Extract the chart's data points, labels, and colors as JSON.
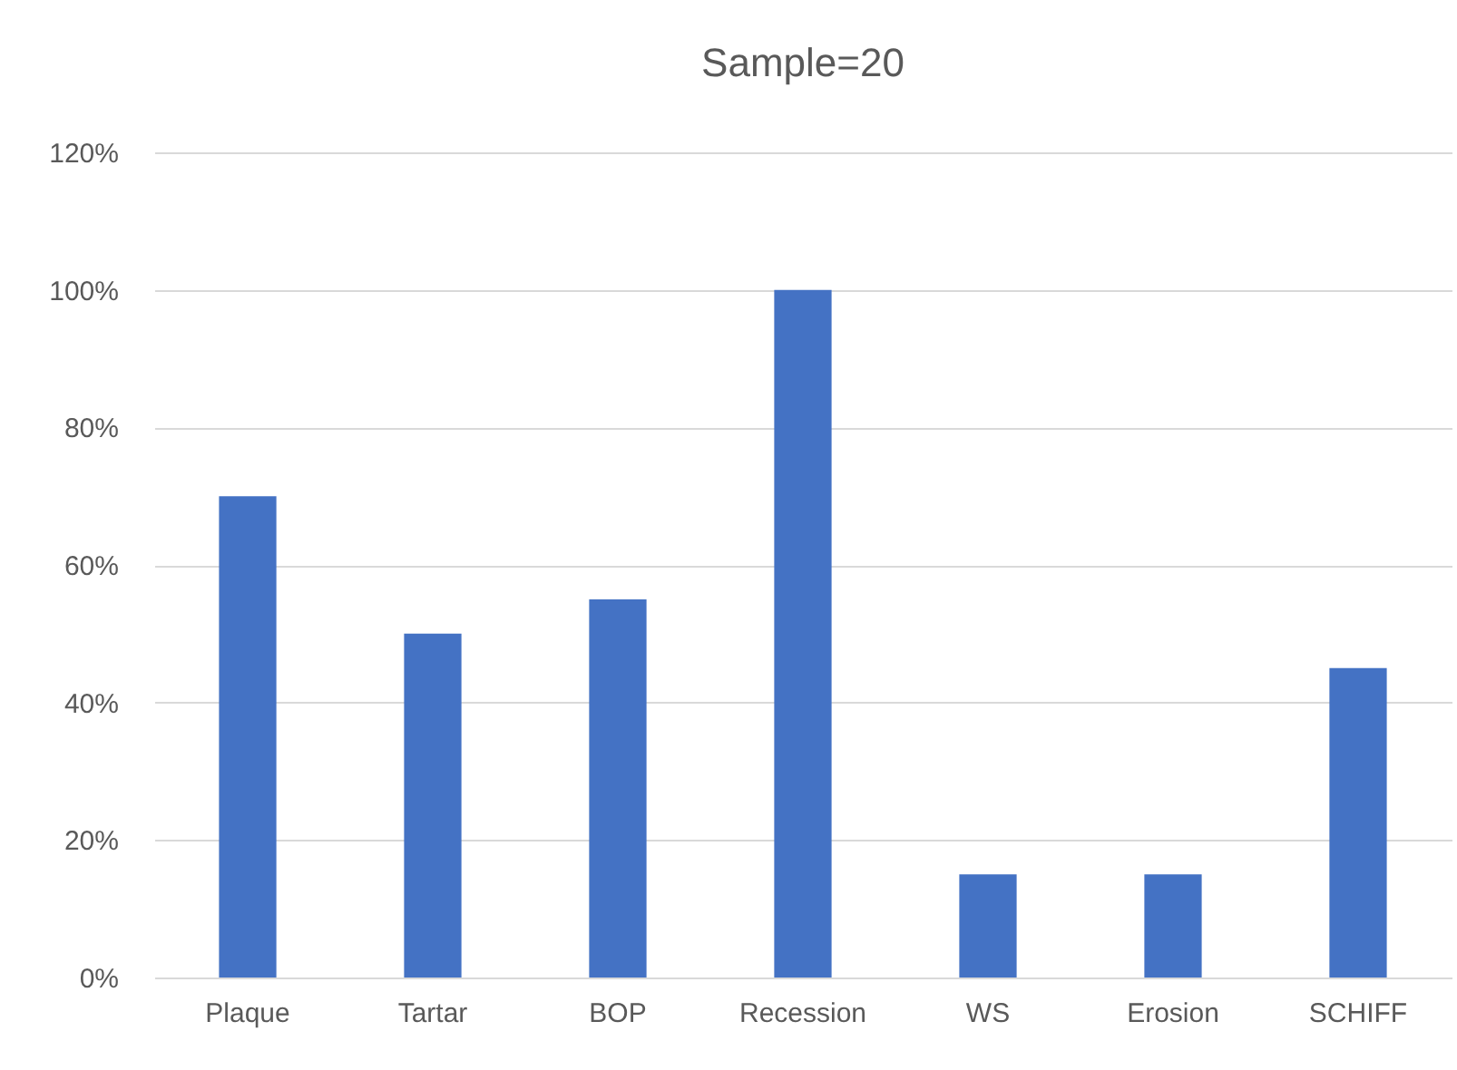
{
  "chart_data": {
    "type": "bar",
    "title": "Sample=20",
    "categories": [
      "Plaque",
      "Tartar",
      "BOP",
      "Recession",
      "WS",
      "Erosion",
      "SCHIFF"
    ],
    "values": [
      70,
      50,
      55,
      100,
      15,
      15,
      45
    ],
    "color": "#4472c4",
    "ylim": [
      0,
      120
    ],
    "yticks": [
      {
        "value": 0,
        "label": "0%"
      },
      {
        "value": 20,
        "label": "20%"
      },
      {
        "value": 40,
        "label": "40%"
      },
      {
        "value": 60,
        "label": "60%"
      },
      {
        "value": 80,
        "label": "80%"
      },
      {
        "value": 100,
        "label": "100%"
      },
      {
        "value": 120,
        "label": "120%"
      }
    ],
    "grid": "y"
  }
}
